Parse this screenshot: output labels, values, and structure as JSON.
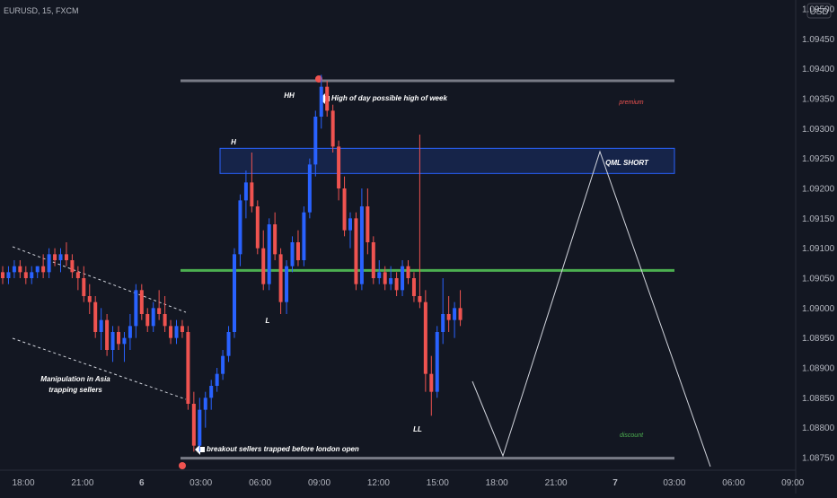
{
  "header": {
    "symbol": "EURUSD, 15, FXCM"
  },
  "axis": {
    "currency": "USD"
  },
  "colors": {
    "background": "#131722",
    "bull": "#2962ff",
    "bear": "#ef5350",
    "level_gray": "#787b86",
    "level_green": "#4caf50",
    "zone_fill": "rgba(41,98,255,0.18)",
    "zone_border": "#2962ff",
    "marker": "#ef5350",
    "premium_text": "#ef5350",
    "discount_text": "#4caf50"
  },
  "chart_data": {
    "type": "candlestick",
    "symbol": "EURUSD",
    "timeframe": "15",
    "ylim": [
      1.08735,
      1.09515
    ],
    "y_ticks": [
      "1.09500",
      "1.09450",
      "1.09400",
      "1.09350",
      "1.09300",
      "1.09250",
      "1.09200",
      "1.09150",
      "1.09100",
      "1.09050",
      "1.09000",
      "1.08950",
      "1.08900",
      "1.08850",
      "1.08800",
      "1.08750"
    ],
    "x_ticks": [
      "18:00",
      "21:00",
      "6",
      "03:00",
      "06:00",
      "09:00",
      "12:00",
      "15:00",
      "18:00",
      "21:00",
      "7",
      "03:00",
      "06:00",
      "09:00"
    ],
    "candles": [
      [
        1.0906,
        1.0907,
        1.0904,
        1.0905
      ],
      [
        1.0905,
        1.0907,
        1.0904,
        1.0906
      ],
      [
        1.0906,
        1.0908,
        1.0905,
        1.0907
      ],
      [
        1.0907,
        1.0908,
        1.0905,
        1.0906
      ],
      [
        1.0906,
        1.0907,
        1.0904,
        1.0905
      ],
      [
        1.0905,
        1.0907,
        1.0904,
        1.0906
      ],
      [
        1.0906,
        1.0907,
        1.0905,
        1.0907
      ],
      [
        1.0907,
        1.0909,
        1.0905,
        1.0906
      ],
      [
        1.0906,
        1.091,
        1.0905,
        1.0909
      ],
      [
        1.0909,
        1.091,
        1.0907,
        1.0908
      ],
      [
        1.0908,
        1.091,
        1.0906,
        1.0909
      ],
      [
        1.0909,
        1.0911,
        1.0907,
        1.0908
      ],
      [
        1.0908,
        1.0909,
        1.0905,
        1.0906
      ],
      [
        1.0906,
        1.0907,
        1.0903,
        1.0905
      ],
      [
        1.0905,
        1.0907,
        1.0901,
        1.0902
      ],
      [
        1.0902,
        1.0904,
        1.0899,
        1.0901
      ],
      [
        1.0901,
        1.0902,
        1.0895,
        1.0896
      ],
      [
        1.0896,
        1.09,
        1.0893,
        1.0898
      ],
      [
        1.0898,
        1.0899,
        1.0892,
        1.0893
      ],
      [
        1.0893,
        1.0897,
        1.0891,
        1.0896
      ],
      [
        1.0896,
        1.0897,
        1.0893,
        1.0894
      ],
      [
        1.0894,
        1.0896,
        1.0891,
        1.0895
      ],
      [
        1.0895,
        1.0899,
        1.0893,
        1.0897
      ],
      [
        1.0897,
        1.0904,
        1.0895,
        1.0903
      ],
      [
        1.0903,
        1.0904,
        1.0898,
        1.0899
      ],
      [
        1.0899,
        1.09,
        1.0896,
        1.0897
      ],
      [
        1.0897,
        1.0901,
        1.0896,
        1.09
      ],
      [
        1.09,
        1.0903,
        1.0898,
        1.0899
      ],
      [
        1.0899,
        1.0902,
        1.0896,
        1.0897
      ],
      [
        1.0897,
        1.0898,
        1.0894,
        1.0895
      ],
      [
        1.0895,
        1.0898,
        1.0894,
        1.0897
      ],
      [
        1.0897,
        1.0898,
        1.0895,
        1.0896
      ],
      [
        1.0896,
        1.0897,
        1.0883,
        1.0884
      ],
      [
        1.0884,
        1.0886,
        1.0876,
        1.0877
      ],
      [
        1.0877,
        1.0885,
        1.0876,
        1.0883
      ],
      [
        1.0883,
        1.0886,
        1.088,
        1.0885
      ],
      [
        1.0885,
        1.0888,
        1.0883,
        1.0887
      ],
      [
        1.0887,
        1.089,
        1.0886,
        1.0889
      ],
      [
        1.0889,
        1.0893,
        1.0888,
        1.0892
      ],
      [
        1.0892,
        1.0897,
        1.0891,
        1.0896
      ],
      [
        1.0896,
        1.091,
        1.0895,
        1.0909
      ],
      [
        1.0909,
        1.0919,
        1.0907,
        1.0918
      ],
      [
        1.0918,
        1.0923,
        1.0915,
        1.0921
      ],
      [
        1.0921,
        1.0926,
        1.0916,
        1.0917
      ],
      [
        1.0917,
        1.0918,
        1.0909,
        1.091
      ],
      [
        1.091,
        1.0913,
        1.0903,
        1.0904
      ],
      [
        1.0904,
        1.0915,
        1.0903,
        1.0914
      ],
      [
        1.0914,
        1.0916,
        1.0908,
        1.0909
      ],
      [
        1.0909,
        1.091,
        1.0899,
        1.0901
      ],
      [
        1.0901,
        1.0908,
        1.0899,
        1.0907
      ],
      [
        1.0907,
        1.0912,
        1.0906,
        1.0911
      ],
      [
        1.0911,
        1.0913,
        1.0907,
        1.0908
      ],
      [
        1.0908,
        1.0917,
        1.0907,
        1.0916
      ],
      [
        1.0916,
        1.0925,
        1.0915,
        1.0924
      ],
      [
        1.0924,
        1.0933,
        1.0922,
        1.0932
      ],
      [
        1.0932,
        1.0939,
        1.093,
        1.0937
      ],
      [
        1.0937,
        1.0938,
        1.0932,
        1.0933
      ],
      [
        1.0933,
        1.0934,
        1.0926,
        1.0927
      ],
      [
        1.0927,
        1.0928,
        1.0918,
        1.092
      ],
      [
        1.092,
        1.0922,
        1.0912,
        1.0913
      ],
      [
        1.0913,
        1.0916,
        1.091,
        1.0915
      ],
      [
        1.0915,
        1.0916,
        1.0903,
        1.0904
      ],
      [
        1.0904,
        1.092,
        1.0903,
        1.0917
      ],
      [
        1.0917,
        1.092,
        1.0909,
        1.0911
      ],
      [
        1.0911,
        1.0912,
        1.0904,
        1.0905
      ],
      [
        1.0905,
        1.0908,
        1.0904,
        1.0906
      ],
      [
        1.0906,
        1.0907,
        1.0903,
        1.0904
      ],
      [
        1.0904,
        1.0907,
        1.0903,
        1.0905
      ],
      [
        1.0905,
        1.0906,
        1.0902,
        1.0903
      ],
      [
        1.0903,
        1.0908,
        1.0902,
        1.0907
      ],
      [
        1.0907,
        1.0908,
        1.0904,
        1.0905
      ],
      [
        1.0905,
        1.0906,
        1.0901,
        1.0902
      ],
      [
        1.0902,
        1.0929,
        1.09,
        1.0901
      ],
      [
        1.0901,
        1.0903,
        1.0886,
        1.0889
      ],
      [
        1.0889,
        1.0892,
        1.0882,
        1.0886
      ],
      [
        1.0886,
        1.0897,
        1.0885,
        1.0896
      ],
      [
        1.0896,
        1.0905,
        1.0894,
        1.0899
      ],
      [
        1.0899,
        1.0902,
        1.0896,
        1.0898
      ],
      [
        1.0898,
        1.0901,
        1.0895,
        1.09
      ],
      [
        1.09,
        1.0903,
        1.0897,
        1.0898
      ]
    ]
  },
  "annotations": {
    "hh": "HH",
    "high_note": "High of day possible high of week",
    "h": "H",
    "l": "L",
    "ll": "LL",
    "qml": "QML SHORT",
    "premium": "premium",
    "discount": "discount",
    "asia_line1": "Manipulation in Asia",
    "asia_line2": "trapping sellers",
    "breakout_note": "breakout sellers trapped before london open"
  }
}
